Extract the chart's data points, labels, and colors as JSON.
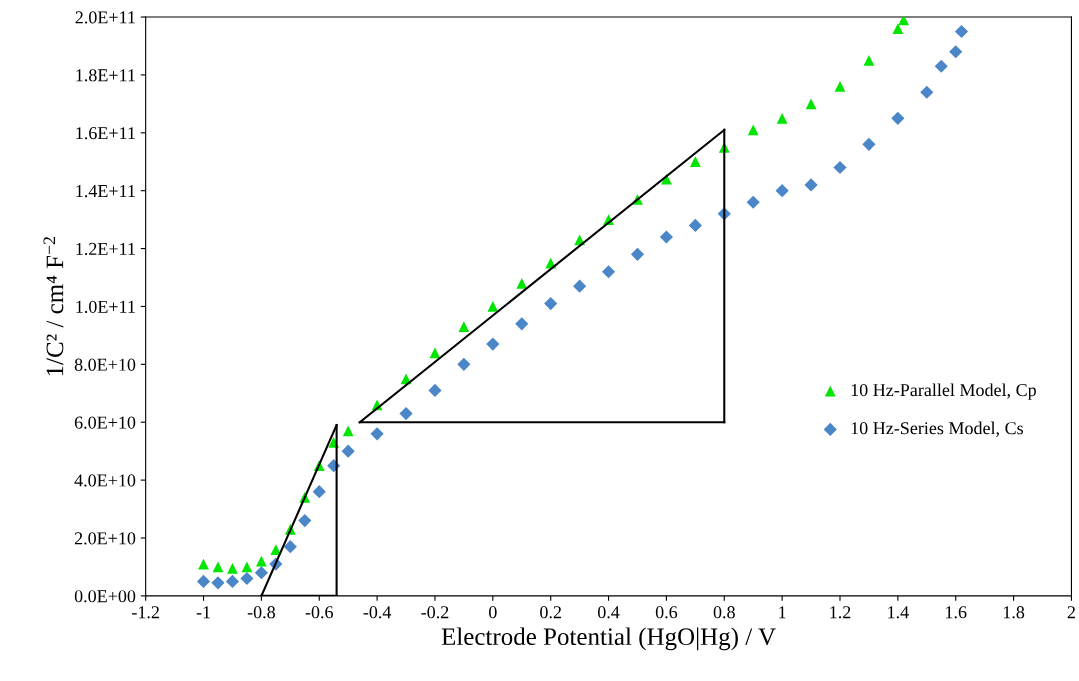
{
  "chart_data": {
    "type": "scatter",
    "xlabel": "Electrode Potential (HgO|Hg) / V",
    "ylabel": "1/C² / cm⁴ F$^{−2}$",
    "xlim": [
      -1.2,
      2
    ],
    "xticks": [
      -1.2,
      -1,
      -0.8,
      -0.6,
      -0.4,
      -0.2,
      0,
      0.2,
      0.4,
      0.6,
      0.8,
      1,
      1.2,
      1.4,
      1.6,
      1.8,
      2
    ],
    "ylim": [
      0,
      200000000000.0
    ],
    "yticks": [
      {
        "value": 0,
        "label": "0.0E+00"
      },
      {
        "value": 20000000000.0,
        "label": "2.0E+10"
      },
      {
        "value": 40000000000.0,
        "label": "4.0E+10"
      },
      {
        "value": 60000000000.0,
        "label": "6.0E+10"
      },
      {
        "value": 80000000000.0,
        "label": "8.0E+10"
      },
      {
        "value": 100000000000.0,
        "label": "1.0E+11"
      },
      {
        "value": 120000000000.0,
        "label": "1.2E+11"
      },
      {
        "value": 140000000000.0,
        "label": "1.4E+11"
      },
      {
        "value": 160000000000.0,
        "label": "1.6E+11"
      },
      {
        "value": 180000000000.0,
        "label": "1.8E+11"
      },
      {
        "value": 200000000000.0,
        "label": "2.0E+11"
      }
    ],
    "grid": false,
    "legend": "right",
    "series": [
      {
        "name": "10 Hz-Parallel Model, Cp",
        "color": "#00e600",
        "marker": "triangle",
        "x": [
          -1.0,
          -0.95,
          -0.9,
          -0.85,
          -0.8,
          -0.75,
          -0.7,
          -0.65,
          -0.6,
          -0.55,
          -0.5,
          -0.4,
          -0.3,
          -0.2,
          -0.1,
          0,
          0.1,
          0.2,
          0.3,
          0.4,
          0.5,
          0.6,
          0.7,
          0.8,
          0.9,
          1.0,
          1.1,
          1.2,
          1.3,
          1.4,
          1.42
        ],
        "values": [
          11000000000.0,
          10000000000.0,
          9500000000.0,
          10000000000.0,
          12000000000.0,
          16000000000.0,
          23000000000.0,
          34000000000.0,
          45000000000.0,
          53000000000.0,
          57000000000.0,
          66000000000.0,
          75000000000.0,
          84000000000.0,
          93000000000.0,
          100000000000.0,
          108000000000.0,
          115000000000.0,
          123000000000.0,
          130000000000.0,
          137000000000.0,
          144000000000.0,
          150000000000.0,
          155000000000.0,
          161000000000.0,
          165000000000.0,
          170000000000.0,
          176000000000.0,
          185000000000.0,
          196000000000.0,
          199000000000.0
        ]
      },
      {
        "name": "10 Hz-Series Model, Cs",
        "color": "#4a86c8",
        "marker": "diamond",
        "x": [
          -1.0,
          -0.95,
          -0.9,
          -0.85,
          -0.8,
          -0.75,
          -0.7,
          -0.65,
          -0.6,
          -0.55,
          -0.5,
          -0.4,
          -0.3,
          -0.2,
          -0.1,
          0,
          0.1,
          0.2,
          0.3,
          0.4,
          0.5,
          0.6,
          0.7,
          0.8,
          0.9,
          1.0,
          1.1,
          1.2,
          1.3,
          1.4,
          1.5,
          1.55,
          1.6,
          1.62
        ],
        "values": [
          5000000000.0,
          4500000000.0,
          5000000000.0,
          6000000000.0,
          8000000000.0,
          11000000000.0,
          17000000000.0,
          26000000000.0,
          36000000000.0,
          45000000000.0,
          50000000000.0,
          56000000000.0,
          63000000000.0,
          71000000000.0,
          80000000000.0,
          87000000000.0,
          94000000000.0,
          101000000000.0,
          107000000000.0,
          112000000000.0,
          118000000000.0,
          124000000000.0,
          128000000000.0,
          132000000000.0,
          136000000000.0,
          140000000000.0,
          142000000000.0,
          148000000000.0,
          156000000000.0,
          165000000000.0,
          174000000000.0,
          183000000000.0,
          188000000000.0,
          195000000000.0
        ]
      },
      {
        "type": "line",
        "color": "#000000",
        "marker": "none",
        "line_style": "solid",
        "x": [
          -0.8,
          -0.54
        ],
        "values": [
          0,
          59000000000.0
        ]
      },
      {
        "type": "line",
        "color": "#000000",
        "marker": "none",
        "line_style": "solid",
        "x": [
          -0.54,
          -0.54
        ],
        "values": [
          0,
          59000000000.0
        ]
      },
      {
        "type": "line",
        "color": "#000000",
        "marker": "none",
        "line_style": "solid",
        "x": [
          -0.8,
          -0.54
        ],
        "values": [
          0,
          0
        ]
      },
      {
        "type": "line",
        "color": "#000000",
        "marker": "none",
        "line_style": "solid",
        "x": [
          -0.46,
          0.8
        ],
        "values": [
          60000000000.0,
          161000000000.0
        ]
      },
      {
        "type": "line",
        "color": "#000000",
        "marker": "none",
        "line_style": "solid",
        "x": [
          0.8,
          0.8
        ],
        "values": [
          60000000000.0,
          161000000000.0
        ]
      },
      {
        "type": "line",
        "color": "#000000",
        "marker": "none",
        "line_style": "solid",
        "x": [
          -0.46,
          0.8
        ],
        "values": [
          60000000000.0,
          60000000000.0
        ]
      }
    ]
  }
}
